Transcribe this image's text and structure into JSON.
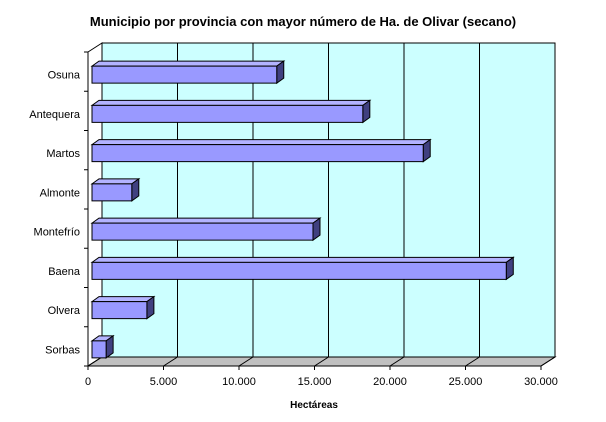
{
  "chart_data": {
    "type": "bar",
    "orientation": "horizontal",
    "title": "Municipio por provincia con mayor número de Ha. de  Olivar (secano)",
    "xlabel": "Hectáreas",
    "ylabel": "",
    "categories": [
      "Osuna",
      "Antequera",
      "Martos",
      "Almonte",
      "Montefrío",
      "Baena",
      "Olvera",
      "Sorbas"
    ],
    "values": [
      12500,
      18200,
      22200,
      2900,
      14900,
      27700,
      3900,
      1200
    ],
    "xlim": [
      0,
      30000
    ],
    "xticks": [
      0,
      5000,
      10000,
      15000,
      20000,
      25000,
      30000
    ],
    "xtick_labels": [
      "0",
      "5.000",
      "10.000",
      "15.000",
      "20.000",
      "25.000",
      "30.000"
    ],
    "grid": "vertical",
    "legend": "none",
    "colors": {
      "bar_front": "#9999ff",
      "bar_top": "#b3b3ff",
      "bar_side": "#404080",
      "plot_wall": "#ccffff",
      "floor": "#c0c0c0"
    }
  }
}
